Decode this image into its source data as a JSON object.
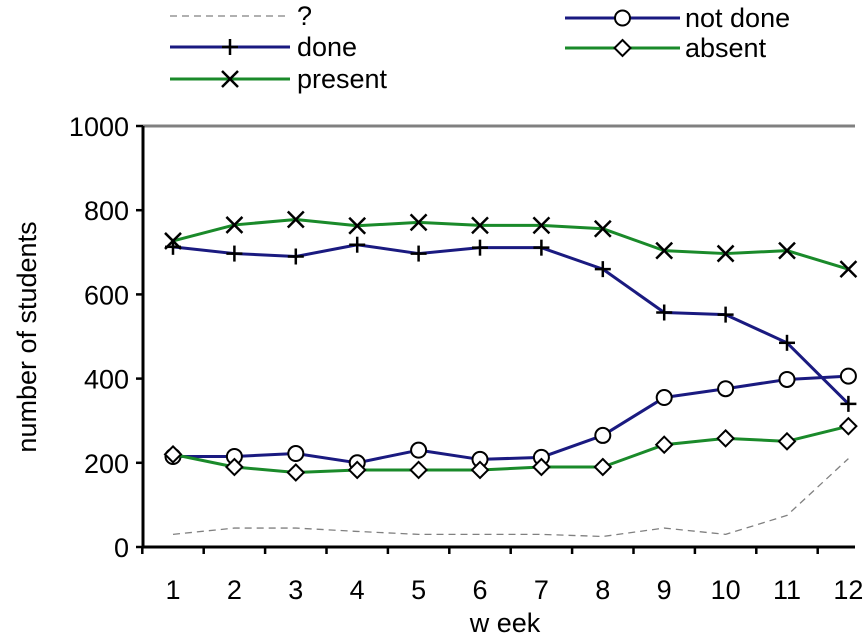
{
  "chart_data": {
    "type": "line",
    "title": "",
    "xlabel": "w eek",
    "ylabel": "number of students",
    "categories": [
      "1",
      "2",
      "3",
      "4",
      "5",
      "6",
      "7",
      "8",
      "9",
      "10",
      "11",
      "12"
    ],
    "ylim": [
      0,
      1000
    ],
    "yticks": [
      "0",
      "200",
      "400",
      "600",
      "800",
      "1000"
    ],
    "ytick_values": [
      0,
      200,
      400,
      600,
      800,
      1000
    ],
    "grid": false,
    "legend_position": "top",
    "series": [
      {
        "name": "?",
        "key": "unknown",
        "color": "#808080",
        "marker": "none",
        "dashed": true,
        "values": [
          30,
          45,
          45,
          37,
          30,
          30,
          30,
          25,
          45,
          30,
          75,
          210
        ]
      },
      {
        "name": "done",
        "key": "done",
        "color": "#1a1a80",
        "marker": "plus",
        "dashed": false,
        "values": [
          713,
          697,
          690,
          718,
          697,
          711,
          711,
          660,
          557,
          552,
          485,
          340
        ]
      },
      {
        "name": "present",
        "key": "present",
        "color": "#1a8a2a",
        "marker": "x",
        "dashed": false,
        "values": [
          727,
          765,
          778,
          763,
          771,
          764,
          764,
          756,
          704,
          697,
          704,
          660
        ]
      },
      {
        "name": "not done",
        "key": "not_done",
        "color": "#1a1a80",
        "marker": "circle",
        "dashed": false,
        "values": [
          215,
          215,
          222,
          200,
          230,
          208,
          213,
          265,
          355,
          376,
          398,
          406
        ]
      },
      {
        "name": "absent",
        "key": "absent",
        "color": "#1a8a2a",
        "marker": "diamond",
        "dashed": false,
        "values": [
          220,
          190,
          177,
          183,
          183,
          183,
          190,
          190,
          243,
          258,
          251,
          287
        ]
      }
    ]
  }
}
